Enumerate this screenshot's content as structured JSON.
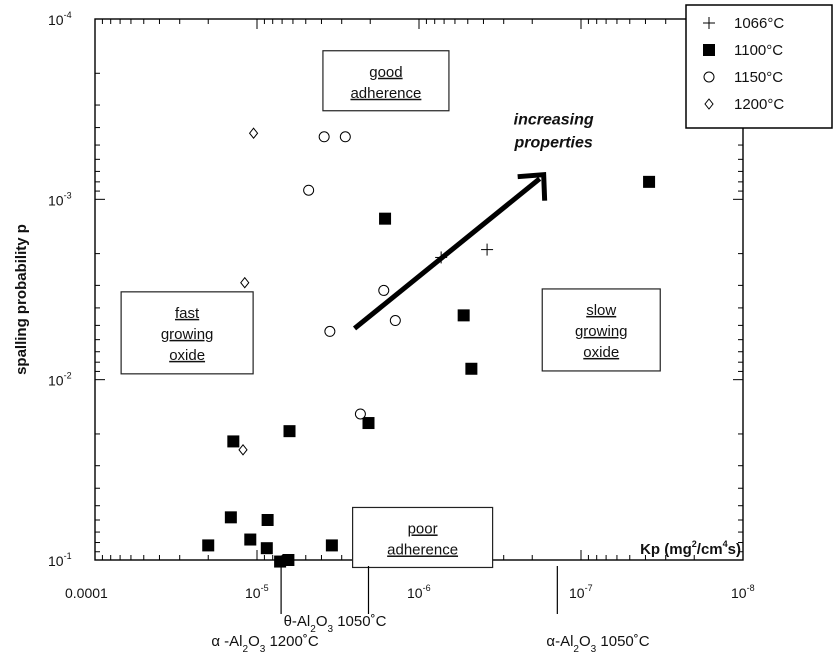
{
  "chart_data": {
    "type": "scatter",
    "title": "",
    "xlabel": "Kp (mg²/cm⁴s)",
    "ylabel": "spalling probability p",
    "x_scale": "log-reversed",
    "y_scale": "log-reversed",
    "xlim": [
      0.0001,
      1e-08
    ],
    "ylim": [
      0.1,
      0.0001
    ],
    "x_tick_labels": [
      {
        "value": 0.0001,
        "base": "0.0001",
        "exp": ""
      },
      {
        "value": 1e-05,
        "base": "10",
        "exp": "-5"
      },
      {
        "value": 1e-06,
        "base": "10",
        "exp": "-6"
      },
      {
        "value": 1e-07,
        "base": "10",
        "exp": "-7"
      },
      {
        "value": 1e-08,
        "base": "10",
        "exp": "-8"
      }
    ],
    "y_tick_labels": [
      {
        "value": 0.0001,
        "base": "10",
        "exp": "-4"
      },
      {
        "value": 0.001,
        "base": "10",
        "exp": "-3"
      },
      {
        "value": 0.01,
        "base": "10",
        "exp": "-2"
      },
      {
        "value": 0.1,
        "base": "10",
        "exp": "-1"
      }
    ],
    "series": [
      {
        "name": "1066°C",
        "marker": "plus",
        "points": [
          [
            7.3e-07,
            0.0021
          ],
          [
            3.8e-07,
            0.0019
          ]
        ]
      },
      {
        "name": "1100°C",
        "marker": "square",
        "points": [
          [
            2e-05,
            0.083
          ],
          [
            1.45e-05,
            0.058
          ],
          [
            1.4e-05,
            0.022
          ],
          [
            1.1e-05,
            0.077
          ],
          [
            8.6e-06,
            0.06
          ],
          [
            8.7e-06,
            0.086
          ],
          [
            7.2e-06,
            0.102
          ],
          [
            6.3e-06,
            0.0193
          ],
          [
            6.4e-06,
            0.1
          ],
          [
            3.45e-06,
            0.083
          ],
          [
            2.05e-06,
            0.0174
          ],
          [
            1.62e-06,
            0.00128
          ],
          [
            5.3e-07,
            0.0044
          ],
          [
            4.75e-07,
            0.0087
          ],
          [
            3.8e-08,
            0.0008
          ]
        ]
      },
      {
        "name": "1150°C",
        "marker": "circle",
        "points": [
          [
            4.8e-06,
            0.00089
          ],
          [
            3.85e-06,
            0.00045
          ],
          [
            2.85e-06,
            0.00045
          ],
          [
            3.55e-06,
            0.0054
          ],
          [
            1.65e-06,
            0.0032
          ],
          [
            1.4e-06,
            0.0047
          ],
          [
            2.3e-06,
            0.0155
          ]
        ]
      },
      {
        "name": "1200°C",
        "marker": "diamond",
        "points": [
          [
            1.05e-05,
            0.00043
          ],
          [
            1.19e-05,
            0.0029
          ],
          [
            1.22e-05,
            0.0245
          ]
        ]
      }
    ],
    "annotations": {
      "arrow": {
        "from": [
          2.5e-06,
          0.0052
        ],
        "to": [
          1.7e-07,
          0.00073
        ],
        "label": [
          "increasing",
          "properties"
        ]
      },
      "boxes": [
        {
          "lines": [
            "good",
            "adherence"
          ],
          "x": 1.6e-06,
          "y": 0.00022
        },
        {
          "lines": [
            "fast",
            "growing",
            "oxide"
          ],
          "x": 2.7e-05,
          "y": 0.0055
        },
        {
          "lines": [
            "slow",
            "growing",
            "oxide"
          ],
          "x": 7.5e-08,
          "y": 0.0053
        },
        {
          "lines": [
            "poor",
            "adherence"
          ],
          "x": 9.5e-07,
          "y": 0.075
        }
      ]
    },
    "phase_markers": [
      {
        "x": 7.1e-06,
        "label_main": "α -Al",
        "sub1": "2",
        "mid": "O",
        "sub2": "3",
        "temp": " 1200˚C"
      },
      {
        "x": 2.05e-06,
        "label_main": "θ-Al",
        "sub1": "2",
        "mid": "O",
        "sub2": "3",
        "temp": " 1050˚C"
      },
      {
        "x": 1.4e-07,
        "label_main": "α-Al",
        "sub1": "2",
        "mid": "O",
        "sub2": "3",
        "temp": " 1050˚C"
      }
    ],
    "legend_position": "top-right",
    "grid": false
  }
}
